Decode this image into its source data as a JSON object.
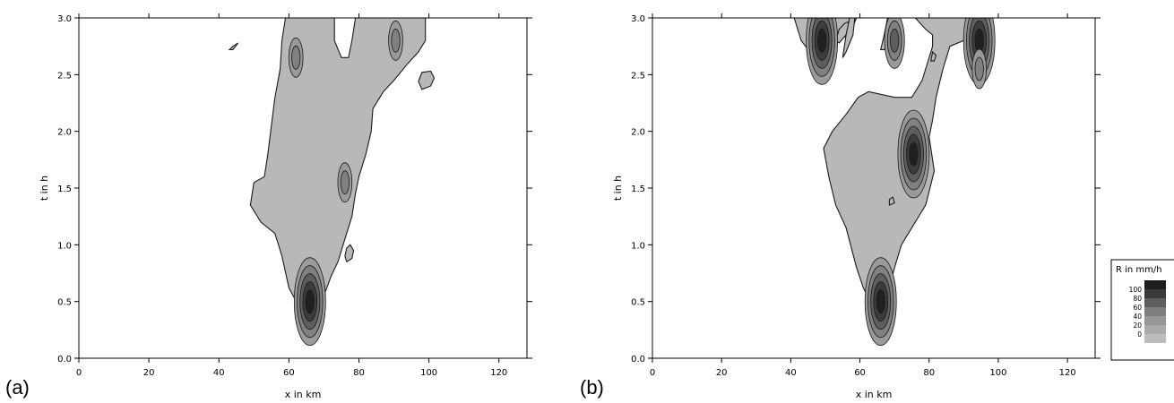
{
  "panel_labels": [
    "(a)",
    "(b)"
  ],
  "colors": {
    "field_fill": "#b8b8b8",
    "contour_line": "#1a1a1a",
    "legend_levels": [
      "#bdbdbd",
      "#aaaaaa",
      "#969696",
      "#7e7e7e",
      "#5e5e5e",
      "#3a3a3a",
      "#1e1e1e"
    ]
  },
  "chart_data": [
    {
      "type": "heatmap",
      "panel": "(a)",
      "xlabel": "x in km",
      "ylabel": "t in h",
      "xlim": [
        0,
        128
      ],
      "ylim": [
        0,
        3.0
      ],
      "xticks": [
        0,
        20,
        40,
        60,
        80,
        100,
        120
      ],
      "yticks": [
        "0.0",
        "0.5",
        "1.0",
        "1.5",
        "2.0",
        "2.5",
        "3.0"
      ],
      "contour_levels_mm_per_h": [
        0,
        20,
        40,
        60,
        80,
        100
      ],
      "field": {
        "main_region": [
          [
            67,
            0.33
          ],
          [
            63,
            0.45
          ],
          [
            60,
            0.62
          ],
          [
            58,
            0.9
          ],
          [
            56,
            1.1
          ],
          [
            52,
            1.2
          ],
          [
            49,
            1.35
          ],
          [
            50,
            1.55
          ],
          [
            53,
            1.6
          ],
          [
            54,
            1.8
          ],
          [
            55,
            2.05
          ],
          [
            56,
            2.3
          ],
          [
            57.5,
            2.55
          ],
          [
            58,
            2.8
          ],
          [
            59,
            3.0
          ],
          [
            99,
            3.0
          ],
          [
            99,
            2.8
          ],
          [
            97,
            2.7
          ],
          [
            94,
            2.6
          ],
          [
            90,
            2.45
          ],
          [
            87,
            2.35
          ],
          [
            86,
            2.3
          ],
          [
            84,
            2.2
          ],
          [
            83.5,
            2.0
          ],
          [
            82,
            1.8
          ],
          [
            80,
            1.6
          ],
          [
            79,
            1.45
          ],
          [
            78,
            1.25
          ],
          [
            76.5,
            1.1
          ],
          [
            75.5,
            1.0
          ],
          [
            74,
            0.85
          ],
          [
            72,
            0.72
          ],
          [
            70,
            0.55
          ],
          [
            68.5,
            0.42
          ]
        ],
        "holes": [
          [
            [
              73,
              3.0
            ],
            [
              79,
              3.0
            ],
            [
              78,
              2.8
            ],
            [
              77,
              2.65
            ],
            [
              75,
              2.65
            ],
            [
              73,
              2.8
            ]
          ]
        ],
        "blobs": [
          [
            [
              98,
              2.37
            ],
            [
              100.5,
              2.4
            ],
            [
              101.5,
              2.47
            ],
            [
              100.5,
              2.53
            ],
            [
              98,
              2.52
            ],
            [
              97,
              2.44
            ]
          ],
          [
            [
              44,
              2.75
            ],
            [
              45.5,
              2.78
            ],
            [
              44,
              2.72
            ],
            [
              43,
              2.72
            ]
          ],
          [
            [
              76.5,
              0.85
            ],
            [
              78,
              0.88
            ],
            [
              78.5,
              0.95
            ],
            [
              77.5,
              1.0
            ],
            [
              76.5,
              0.97
            ],
            [
              76,
              0.9
            ]
          ]
        ],
        "intense_cells": [
          {
            "x": 66,
            "t": 0.5,
            "peak_mm_per_h": 100
          },
          {
            "x": 76,
            "t": 1.55,
            "peak_mm_per_h": 40
          },
          {
            "x": 62,
            "t": 2.65,
            "peak_mm_per_h": 40
          },
          {
            "x": 90.5,
            "t": 2.8,
            "peak_mm_per_h": 40
          }
        ]
      }
    },
    {
      "type": "heatmap",
      "panel": "(b)",
      "xlabel": "x in km",
      "ylabel": "t in h",
      "xlim": [
        0,
        128
      ],
      "ylim": [
        0,
        3.0
      ],
      "xticks": [
        0,
        20,
        40,
        60,
        80,
        100,
        120
      ],
      "yticks": [
        "0.0",
        "0.5",
        "1.0",
        "1.5",
        "2.0",
        "2.5",
        "3.0"
      ],
      "contour_levels_mm_per_h": [
        0,
        20,
        40,
        60,
        80,
        100
      ],
      "field": {
        "main_region": [
          [
            65,
            0.38
          ],
          [
            63,
            0.5
          ],
          [
            61,
            0.62
          ],
          [
            59,
            0.8
          ],
          [
            56,
            1.15
          ],
          [
            53,
            1.35
          ],
          [
            51,
            1.6
          ],
          [
            49.5,
            1.85
          ],
          [
            52,
            2.0
          ],
          [
            56,
            2.15
          ],
          [
            59.5,
            2.3
          ],
          [
            62.5,
            2.35
          ],
          [
            70,
            2.3
          ],
          [
            75,
            2.3
          ],
          [
            78,
            2.45
          ],
          [
            81,
            2.75
          ],
          [
            81,
            2.85
          ],
          [
            79,
            2.9
          ],
          [
            76,
            3.0
          ],
          [
            94,
            3.0
          ],
          [
            92,
            2.9
          ],
          [
            90,
            2.8
          ],
          [
            86,
            2.75
          ],
          [
            84,
            2.55
          ],
          [
            82,
            2.3
          ],
          [
            81,
            2.1
          ],
          [
            80,
            1.95
          ],
          [
            81.5,
            1.65
          ],
          [
            79,
            1.35
          ],
          [
            76,
            1.2
          ],
          [
            72,
            1.0
          ],
          [
            70,
            0.8
          ],
          [
            67.5,
            0.5
          ]
        ],
        "holes": [],
        "blobs": [
          [
            [
              41,
              3.0
            ],
            [
              59,
              3.0
            ],
            [
              57,
              2.85
            ],
            [
              53,
              2.8
            ],
            [
              51,
              2.75
            ],
            [
              48,
              2.72
            ],
            [
              45,
              2.72
            ],
            [
              43,
              2.8
            ]
          ],
          [
            [
              53,
              2.8
            ],
            [
              54,
              2.78
            ],
            [
              56,
              2.85
            ],
            [
              57,
              2.97
            ],
            [
              55.5,
              2.95
            ],
            [
              54,
              2.9
            ]
          ],
          [
            [
              55,
              2.65
            ],
            [
              56,
              2.7
            ],
            [
              58,
              2.85
            ],
            [
              58.5,
              3.0
            ],
            [
              57,
              3.0
            ],
            [
              56,
              2.85
            ]
          ],
          [
            [
              66,
              2.72
            ],
            [
              67,
              2.72
            ],
            [
              69,
              2.82
            ],
            [
              70,
              3.0
            ],
            [
              68,
              3.0
            ],
            [
              67,
              2.85
            ]
          ],
          [
            [
              80.5,
              2.62
            ],
            [
              81.5,
              2.62
            ],
            [
              82,
              2.67
            ],
            [
              81,
              2.7
            ]
          ],
          [
            [
              93,
              3.0
            ],
            [
              96,
              3.0
            ],
            [
              96,
              2.7
            ],
            [
              95.5,
              2.5
            ],
            [
              94.5,
              2.43
            ],
            [
              93.5,
              2.55
            ],
            [
              93,
              2.8
            ]
          ],
          [
            [
              68.5,
              1.35
            ],
            [
              70,
              1.37
            ],
            [
              69.5,
              1.42
            ],
            [
              68.5,
              1.4
            ]
          ]
        ],
        "intense_cells": [
          {
            "x": 66,
            "t": 0.5,
            "peak_mm_per_h": 100
          },
          {
            "x": 75.5,
            "t": 1.8,
            "peak_mm_per_h": 100
          },
          {
            "x": 49,
            "t": 2.8,
            "peak_mm_per_h": 100
          },
          {
            "x": 94.5,
            "t": 2.8,
            "peak_mm_per_h": 100
          },
          {
            "x": 70,
            "t": 2.8,
            "peak_mm_per_h": 60
          },
          {
            "x": 94.5,
            "t": 2.55,
            "peak_mm_per_h": 40
          }
        ]
      }
    }
  ],
  "legend": {
    "title": "R in mm/h",
    "tick_labels": [
      "100",
      "80",
      "60",
      "40",
      "20",
      "0"
    ]
  }
}
